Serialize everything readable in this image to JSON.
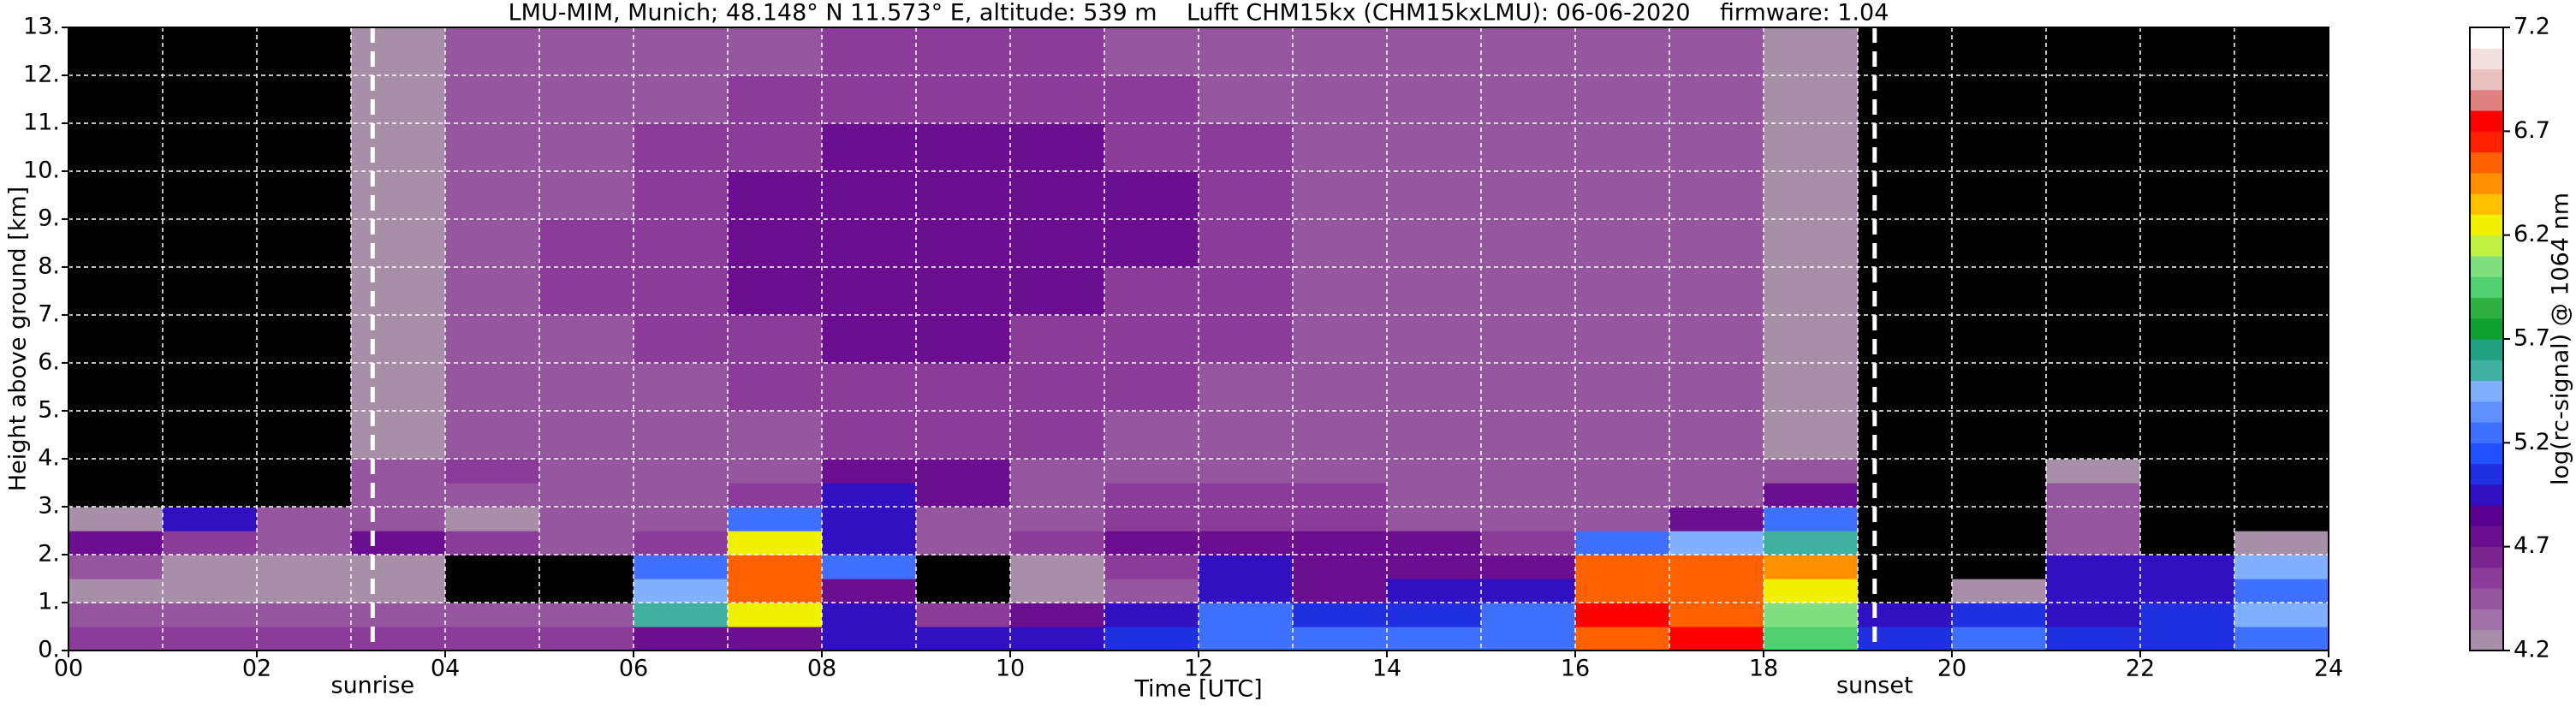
{
  "chart_data": {
    "type": "heatmap",
    "title": "LMU-MIM, Munich; 48.148° N 11.573° E, altitude: 539 m    Lufft CHM15kx (CHM15kxLMU): 06-06-2020    firmware: 1.04",
    "x_label": "Time [UTC]",
    "y_label": "Height above ground [km]",
    "xlim": [
      0,
      24
    ],
    "ylim": [
      0,
      13
    ],
    "xticks": [
      {
        "value": 0,
        "label": "00"
      },
      {
        "value": 2,
        "label": "02"
      },
      {
        "value": 4,
        "label": "04"
      },
      {
        "value": 6,
        "label": "06"
      },
      {
        "value": 8,
        "label": "08"
      },
      {
        "value": 10,
        "label": "10"
      },
      {
        "value": 12,
        "label": "12"
      },
      {
        "value": 14,
        "label": "14"
      },
      {
        "value": 16,
        "label": "16"
      },
      {
        "value": 18,
        "label": "18"
      },
      {
        "value": 20,
        "label": "20"
      },
      {
        "value": 22,
        "label": "22"
      },
      {
        "value": 24,
        "label": "24"
      }
    ],
    "xminorticks": [
      1,
      3,
      5,
      7,
      9,
      11,
      13,
      15,
      17,
      19,
      21,
      23
    ],
    "yticks": [
      {
        "value": 0,
        "label": "0."
      },
      {
        "value": 1,
        "label": "1."
      },
      {
        "value": 2,
        "label": "2."
      },
      {
        "value": 3,
        "label": "3."
      },
      {
        "value": 4,
        "label": "4."
      },
      {
        "value": 5,
        "label": "5."
      },
      {
        "value": 6,
        "label": "6."
      },
      {
        "value": 7,
        "label": "7."
      },
      {
        "value": 8,
        "label": "8."
      },
      {
        "value": 9,
        "label": "9."
      },
      {
        "value": 10,
        "label": "10."
      },
      {
        "value": 11,
        "label": "11."
      },
      {
        "value": 12,
        "label": "12."
      },
      {
        "value": 13,
        "label": "13."
      }
    ],
    "grid": true,
    "annotations": [
      {
        "label": "sunrise",
        "x": 3.23
      },
      {
        "label": "sunset",
        "x": 19.18
      }
    ],
    "x_edges": [
      0,
      1,
      2,
      3,
      4,
      5,
      6,
      7,
      8,
      9,
      10,
      11,
      12,
      13,
      14,
      15,
      16,
      17,
      18,
      19,
      20,
      21,
      22,
      23,
      24
    ],
    "y_edges": [
      0,
      0.5,
      1,
      1.5,
      2,
      2.5,
      3,
      3.5,
      4,
      5,
      6,
      7,
      8,
      9,
      10,
      11,
      12,
      13
    ],
    "z": [
      [
        4.6,
        4.6,
        4.6,
        4.6,
        4.6,
        4.6,
        4.7,
        4.8,
        4.9,
        4.9,
        5.0,
        5.1,
        5.3,
        5.2,
        5.3,
        5.3,
        6.6,
        6.7,
        5.9,
        5.1,
        5.2,
        5.1,
        5.1,
        5.3
      ],
      [
        4.5,
        4.5,
        4.5,
        4.4,
        4.5,
        4.5,
        5.6,
        6.3,
        5.0,
        4.6,
        4.8,
        5.0,
        5.3,
        5.1,
        5.1,
        5.2,
        6.7,
        6.6,
        6.0,
        4.9,
        5.1,
        5.0,
        5.1,
        5.4
      ],
      [
        4.3,
        4.3,
        4.3,
        4.2,
        4.1,
        4.1,
        5.5,
        6.6,
        4.8,
        4.1,
        4.3,
        4.5,
        5.0,
        4.8,
        4.9,
        4.9,
        6.6,
        6.6,
        6.2,
        3.8,
        4.3,
        5.0,
        4.9,
        5.3
      ],
      [
        4.5,
        4.3,
        4.2,
        4.2,
        4.0,
        4.0,
        5.2,
        6.5,
        5.2,
        4.0,
        4.3,
        4.6,
        4.9,
        4.8,
        4.7,
        4.7,
        6.5,
        6.6,
        6.4,
        3.8,
        4.0,
        4.9,
        5.0,
        5.4
      ],
      [
        4.8,
        4.6,
        4.5,
        4.7,
        4.6,
        4.4,
        4.6,
        6.3,
        5.0,
        4.4,
        4.6,
        4.7,
        4.8,
        4.8,
        4.7,
        4.6,
        5.2,
        5.5,
        5.6,
        3.8,
        3.9,
        4.5,
        4.0,
        4.2
      ],
      [
        4.2,
        5.0,
        4.4,
        4.4,
        4.3,
        4.4,
        4.5,
        5.3,
        5.0,
        4.5,
        4.5,
        4.6,
        4.6,
        4.6,
        4.5,
        4.5,
        4.5,
        4.8,
        5.2,
        3.8,
        3.8,
        4.5,
        3.9,
        3.9
      ],
      [
        3.9,
        3.9,
        4.0,
        4.4,
        4.5,
        4.5,
        4.5,
        4.6,
        5.0,
        4.8,
        4.5,
        4.6,
        4.6,
        4.6,
        4.5,
        4.5,
        4.4,
        4.4,
        4.8,
        3.8,
        3.8,
        4.4,
        3.8,
        3.8
      ],
      [
        3.8,
        3.8,
        3.8,
        4.4,
        4.6,
        4.5,
        4.5,
        4.5,
        4.7,
        4.8,
        4.5,
        4.5,
        4.5,
        4.5,
        4.5,
        4.5,
        4.4,
        4.4,
        4.4,
        3.8,
        3.8,
        4.2,
        3.7,
        3.7
      ],
      [
        3.7,
        3.7,
        3.8,
        4.3,
        4.5,
        4.5,
        4.5,
        4.5,
        4.6,
        4.6,
        4.6,
        4.5,
        4.5,
        4.5,
        4.5,
        4.4,
        4.4,
        4.4,
        4.3,
        3.8,
        3.7,
        3.7,
        3.7,
        3.7
      ],
      [
        3.7,
        3.7,
        3.7,
        4.3,
        4.5,
        4.5,
        4.5,
        4.6,
        4.6,
        4.6,
        4.6,
        4.6,
        4.5,
        4.5,
        4.5,
        4.4,
        4.4,
        4.4,
        4.3,
        3.8,
        3.7,
        3.7,
        3.7,
        3.7
      ],
      [
        3.7,
        3.7,
        3.7,
        4.3,
        4.5,
        4.5,
        4.6,
        4.6,
        4.7,
        4.7,
        4.6,
        4.6,
        4.6,
        4.5,
        4.5,
        4.4,
        4.4,
        4.4,
        4.3,
        3.8,
        3.7,
        3.7,
        3.7,
        3.7
      ],
      [
        3.7,
        3.7,
        3.7,
        4.3,
        4.5,
        4.6,
        4.6,
        4.7,
        4.7,
        4.7,
        4.7,
        4.6,
        4.6,
        4.5,
        4.5,
        4.4,
        4.4,
        4.5,
        4.3,
        3.8,
        3.7,
        3.7,
        3.7,
        3.7
      ],
      [
        3.7,
        3.7,
        3.7,
        4.3,
        4.5,
        4.6,
        4.6,
        4.7,
        4.8,
        4.8,
        4.7,
        4.7,
        4.6,
        4.5,
        4.5,
        4.4,
        4.4,
        4.5,
        4.3,
        3.8,
        3.7,
        3.7,
        3.7,
        3.7
      ],
      [
        3.7,
        3.7,
        3.7,
        4.3,
        4.5,
        4.5,
        4.6,
        4.7,
        4.8,
        4.8,
        4.7,
        4.7,
        4.6,
        4.5,
        4.5,
        4.4,
        4.4,
        4.4,
        4.3,
        3.8,
        3.7,
        3.7,
        3.7,
        3.7
      ],
      [
        3.7,
        3.7,
        3.7,
        4.3,
        4.5,
        4.5,
        4.6,
        4.6,
        4.7,
        4.7,
        4.7,
        4.6,
        4.6,
        4.5,
        4.5,
        4.4,
        4.4,
        4.4,
        4.3,
        3.8,
        3.7,
        3.7,
        3.7,
        3.7
      ],
      [
        3.7,
        3.7,
        3.7,
        4.3,
        4.5,
        4.5,
        4.5,
        4.6,
        4.6,
        4.6,
        4.6,
        4.6,
        4.5,
        4.5,
        4.4,
        4.4,
        4.4,
        4.4,
        4.3,
        3.8,
        3.7,
        3.7,
        3.7,
        3.7
      ],
      [
        3.7,
        3.7,
        3.7,
        4.3,
        4.4,
        4.5,
        4.5,
        4.5,
        4.6,
        4.6,
        4.6,
        4.5,
        4.5,
        4.5,
        4.4,
        4.4,
        4.4,
        4.4,
        4.3,
        3.8,
        3.7,
        3.7,
        3.7,
        3.7
      ]
    ],
    "colorbar": {
      "label": "log(rc-signal) @ 1064 nm",
      "lim": [
        4.2,
        7.2
      ],
      "ticks": [
        4.2,
        4.7,
        5.2,
        5.7,
        6.2,
        6.7,
        7.2
      ],
      "under_color": "#000000",
      "colors": [
        "#a88fa8",
        "#a070a8",
        "#95559f",
        "#8a3c98",
        "#7a2590",
        "#6a0f90",
        "#5a0090",
        "#3010c0",
        "#2030e0",
        "#2050ff",
        "#4070ff",
        "#6090ff",
        "#80b0ff",
        "#40b0a0",
        "#20a080",
        "#10a030",
        "#30b040",
        "#50d070",
        "#80e080",
        "#c0f040",
        "#f0f000",
        "#ffc000",
        "#ff9000",
        "#ff6000",
        "#ff2000",
        "#ff0000",
        "#e08080",
        "#e8c0c0",
        "#f0e0e0",
        "#ffffff"
      ]
    }
  }
}
